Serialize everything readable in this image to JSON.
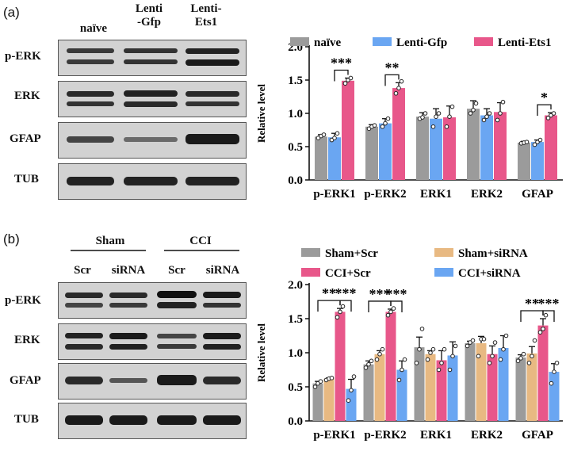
{
  "panels": [
    {
      "label": "(a)",
      "lanes": [
        "naïve",
        "Lenti\n-Gfp",
        "Lenti-\nEts1"
      ],
      "blot_rows": [
        "p-ERK",
        "ERK",
        "GFAP",
        "TUB"
      ]
    },
    {
      "label": "(b)",
      "groups": [
        "Sham",
        "CCI"
      ],
      "lanes": [
        "Scr",
        "siRNA",
        "Scr",
        "siRNA"
      ],
      "blot_rows": [
        "p-ERK",
        "ERK",
        "GFAP",
        "TUB"
      ]
    }
  ],
  "chart_data": [
    {
      "type": "bar",
      "ylabel": "Relative level",
      "ylim": [
        0,
        2.0
      ],
      "yticks": [
        "0.0",
        "0.5",
        "1.0",
        "1.5",
        "2.0"
      ],
      "categories": [
        "p-ERK1",
        "p-ERK2",
        "ERK1",
        "ERK2",
        "GFAP"
      ],
      "legend_position": "top",
      "series": [
        {
          "name": "naïve",
          "color": "#9b9b9b",
          "values": [
            0.65,
            0.8,
            0.95,
            1.07,
            0.56
          ]
        },
        {
          "name": "Lenti-Gfp",
          "color": "#6aa6f2",
          "values": [
            0.64,
            0.85,
            0.92,
            0.97,
            0.57
          ]
        },
        {
          "name": "Lenti-Ets1",
          "color": "#e8578a",
          "values": [
            1.49,
            1.38,
            0.94,
            1.02,
            0.97
          ]
        }
      ],
      "points": [
        [
          [
            0.63,
            0.66,
            0.68
          ],
          [
            0.77,
            0.8,
            0.82
          ],
          [
            0.92,
            0.94,
            1.0
          ],
          [
            1.0,
            1.05,
            1.15
          ],
          [
            0.55,
            0.56,
            0.57
          ]
        ],
        [
          [
            0.6,
            0.63,
            0.7
          ],
          [
            0.8,
            0.85,
            0.92
          ],
          [
            0.8,
            0.95,
            1.0
          ],
          [
            0.9,
            0.95,
            1.0
          ],
          [
            0.53,
            0.57,
            0.6
          ]
        ],
        [
          [
            1.45,
            1.5,
            1.53
          ],
          [
            1.3,
            1.38,
            1.48
          ],
          [
            0.8,
            0.95,
            1.1
          ],
          [
            0.9,
            1.0,
            1.17
          ],
          [
            0.93,
            0.97,
            1.0
          ]
        ]
      ],
      "errors": [
        [
          0.03,
          0.03,
          0.06,
          0.12,
          0.02
        ],
        [
          0.06,
          0.07,
          0.15,
          0.1,
          0.03
        ],
        [
          0.04,
          0.08,
          0.17,
          0.14,
          0.04
        ]
      ],
      "significance": [
        {
          "category": 0,
          "from": 1,
          "to": 2,
          "label": "***"
        },
        {
          "category": 1,
          "from": 1,
          "to": 2,
          "label": "**"
        },
        {
          "category": 4,
          "from": 1,
          "to": 2,
          "label": "*"
        }
      ]
    },
    {
      "type": "bar",
      "ylabel": "Relative level",
      "ylim": [
        0,
        2.0
      ],
      "yticks": [
        "0.0",
        "0.5",
        "1.0",
        "1.5",
        "2.0"
      ],
      "categories": [
        "p-ERK1",
        "p-ERK2",
        "ERK1",
        "ERK2",
        "GFAP"
      ],
      "legend_position": "top",
      "series": [
        {
          "name": "Sham+Scr",
          "color": "#9b9b9b",
          "values": [
            0.55,
            0.83,
            1.08,
            1.14,
            0.93
          ]
        },
        {
          "name": "Sham+siRNA",
          "color": "#e8b982",
          "values": [
            0.62,
            0.98,
            0.98,
            1.14,
            0.99
          ]
        },
        {
          "name": "CCI+Scr",
          "color": "#e8578a",
          "values": [
            1.6,
            1.6,
            0.89,
            0.98,
            1.4
          ]
        },
        {
          "name": "CCI+siRNA",
          "color": "#6aa6f2",
          "values": [
            0.47,
            0.75,
            0.96,
            1.07,
            0.72
          ]
        }
      ],
      "points": [
        [
          [
            0.5,
            0.55,
            0.58
          ],
          [
            0.78,
            0.83,
            0.88
          ],
          [
            0.85,
            1.05,
            1.35
          ],
          [
            1.1,
            1.15,
            1.18
          ],
          [
            0.88,
            0.92,
            0.98
          ]
        ],
        [
          [
            0.6,
            0.62,
            0.63
          ],
          [
            0.9,
            0.98,
            1.05
          ],
          [
            0.9,
            1.0,
            1.05
          ],
          [
            0.95,
            1.2,
            1.2
          ],
          [
            0.85,
            0.95,
            1.18
          ]
        ],
        [
          [
            1.52,
            1.6,
            1.68
          ],
          [
            1.55,
            1.6,
            1.65
          ],
          [
            0.75,
            0.85,
            1.05
          ],
          [
            0.85,
            0.95,
            1.15
          ],
          [
            1.3,
            1.35,
            1.55
          ]
        ],
        [
          [
            0.3,
            0.45,
            0.65
          ],
          [
            0.6,
            0.75,
            0.9
          ],
          [
            0.75,
            0.95,
            1.1
          ],
          [
            0.9,
            1.05,
            1.25
          ],
          [
            0.55,
            0.72,
            0.85
          ]
        ]
      ],
      "errors": [
        [
          0.03,
          0.05,
          0.15,
          0.03,
          0.04
        ],
        [
          0.01,
          0.05,
          0.05,
          0.1,
          0.1
        ],
        [
          0.05,
          0.04,
          0.14,
          0.12,
          0.1
        ],
        [
          0.14,
          0.13,
          0.2,
          0.18,
          0.12
        ]
      ],
      "significance": [
        {
          "category": 0,
          "from": 0,
          "to": 2,
          "label": "**",
          "level": 0
        },
        {
          "category": 0,
          "from": 2,
          "to": 3,
          "label": "***",
          "level": 0
        },
        {
          "category": 1,
          "from": 0,
          "to": 2,
          "label": "***",
          "level": 0
        },
        {
          "category": 1,
          "from": 2,
          "to": 3,
          "label": "***",
          "level": 0
        },
        {
          "category": 4,
          "from": 0,
          "to": 2,
          "label": "**",
          "level": 0
        },
        {
          "category": 4,
          "from": 2,
          "to": 3,
          "label": "***",
          "level": 0
        }
      ]
    }
  ]
}
